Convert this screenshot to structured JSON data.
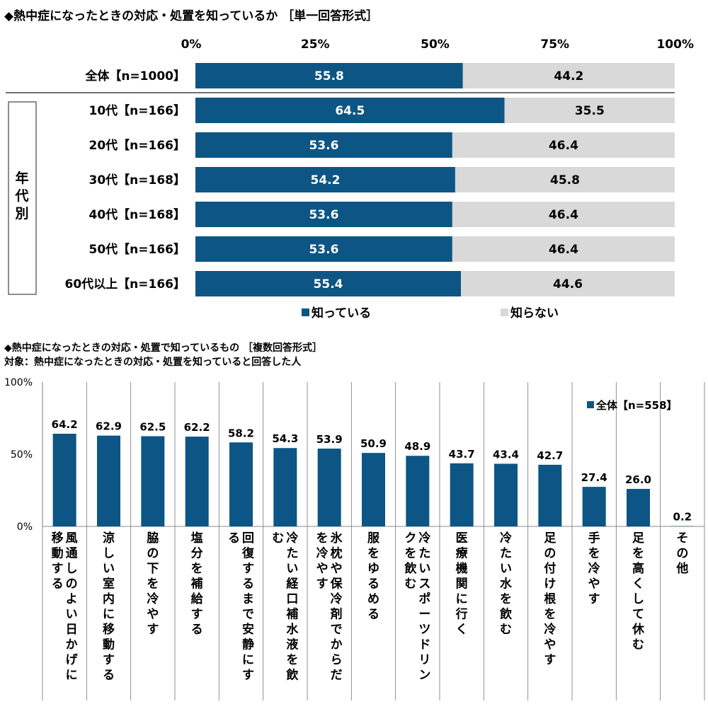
{
  "chart1": {
    "title": "◆熱中症になったときの対応・処置を知っているか ［単一回答形式］",
    "ticks": [
      "0%",
      "25%",
      "50%",
      "75%",
      "100%"
    ],
    "group_label": "年代別",
    "legend": [
      {
        "name": "知っている",
        "color": "#0c5584"
      },
      {
        "name": "知らない",
        "color": "#d9d9d9"
      }
    ]
  },
  "chart2": {
    "title": "◆熱中症になったときの対応・処置で知っているもの ［複数回答形式］",
    "subtitle": "対象：熱中症になったときの対応・処置を知っていると回答した人",
    "yticks": [
      "100%",
      "50%",
      "0%"
    ],
    "legend": "全体【n=558】",
    "color": "#0c5584"
  },
  "chart_data": [
    {
      "type": "bar",
      "orientation": "horizontal",
      "stacked": true,
      "title": "◆熱中症になったときの対応・処置を知っているか ［単一回答形式］",
      "categories": [
        "全体【n=1000】",
        "10代【n=166】",
        "20代【n=166】",
        "30代【n=168】",
        "40代【n=168】",
        "50代【n=166】",
        "60代以上【n=166】"
      ],
      "series": [
        {
          "name": "知っている",
          "values": [
            55.8,
            64.5,
            53.6,
            54.2,
            53.6,
            53.6,
            55.4
          ]
        },
        {
          "name": "知らない",
          "values": [
            44.2,
            35.5,
            46.4,
            45.8,
            46.4,
            46.4,
            44.6
          ]
        }
      ],
      "labels_known": [
        "55.8",
        "64.5",
        "53.6",
        "54.2",
        "53.6",
        "53.6",
        "55.4"
      ],
      "labels_unknown": [
        "44.2",
        "35.5",
        "46.4",
        "45.8",
        "46.4",
        "46.4",
        "44.6"
      ],
      "xlim": [
        0,
        100
      ],
      "legend_position": "bottom"
    },
    {
      "type": "bar",
      "orientation": "vertical",
      "title": "◆熱中症になったときの対応・処置で知っているもの ［複数回答形式］",
      "categories": [
        "風通しのよい日かげに移動する",
        "涼しい室内に移動する",
        "脇の下を冷やす",
        "塩分を補給する",
        "回復するまで安静にする",
        "冷たい経口補水液を飲む",
        "氷枕や保冷剤でからだを冷やす",
        "服をゆるめる",
        "冷たいスポーツドリンクを飲む",
        "医療機関に行く",
        "冷たい水を飲む",
        "足の付け根を冷やす",
        "手を冷やす",
        "足を高くして休む",
        "その他"
      ],
      "series": [
        {
          "name": "全体【n=558】",
          "values": [
            64.2,
            62.9,
            62.5,
            62.2,
            58.2,
            54.3,
            53.9,
            50.9,
            48.9,
            43.7,
            43.4,
            42.7,
            27.4,
            26.0,
            0.2
          ]
        }
      ],
      "labels": [
        "64.2",
        "62.9",
        "62.5",
        "62.2",
        "58.2",
        "54.3",
        "53.9",
        "50.9",
        "48.9",
        "43.7",
        "43.4",
        "42.7",
        "27.4",
        "26.0",
        "0.2"
      ],
      "ylim": [
        0,
        100
      ],
      "legend_position": "top-right"
    }
  ]
}
